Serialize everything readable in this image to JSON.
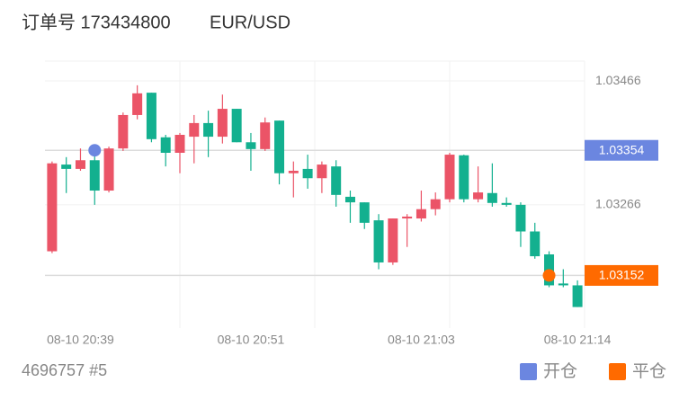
{
  "header": {
    "order_label": "订单号 173434800",
    "symbol": "EUR/USD"
  },
  "chart_data": {
    "type": "candlestick",
    "categories": [
      null,
      null,
      "08-10 20:39",
      null,
      null,
      null,
      null,
      null,
      null,
      null,
      null,
      null,
      null,
      null,
      "08-10 20:51",
      null,
      null,
      null,
      null,
      null,
      null,
      null,
      null,
      null,
      null,
      null,
      "08-10 21:03",
      null,
      null,
      null,
      null,
      null,
      null,
      null,
      null,
      null,
      null,
      "08-10 21:14"
    ],
    "open": [
      1.03191,
      1.03331,
      1.03324,
      1.03338,
      1.03289,
      1.03357,
      1.03411,
      1.03447,
      1.03375,
      1.0335,
      1.03376,
      1.03398,
      1.03376,
      1.03421,
      1.03367,
      1.03356,
      1.03402,
      1.03317,
      1.03324,
      1.03309,
      1.03328,
      1.03279,
      1.0327,
      1.03241,
      1.03173,
      1.03244,
      1.03244,
      1.03259,
      1.03275,
      1.03346,
      1.03275,
      1.03285,
      1.03269,
      1.03266,
      1.03223,
      1.03186,
      1.03139,
      1.03136
    ],
    "high": [
      1.03336,
      1.03343,
      1.03357,
      1.03353,
      1.0336,
      1.03415,
      1.03459,
      1.03447,
      1.03379,
      1.03382,
      1.03411,
      1.03418,
      1.03444,
      1.03421,
      1.03382,
      1.03407,
      1.03402,
      1.03336,
      1.03347,
      1.03336,
      1.03338,
      1.03289,
      1.0327,
      1.03251,
      1.03244,
      1.03251,
      1.03289,
      1.03286,
      1.0335,
      1.03347,
      1.03328,
      1.03333,
      1.03278,
      1.0327,
      1.03237,
      1.03191,
      1.03162,
      1.03144
    ],
    "low": [
      1.03188,
      1.03285,
      1.03321,
      1.03266,
      1.03286,
      1.03353,
      1.03404,
      1.03367,
      1.03328,
      1.03317,
      1.03333,
      1.03343,
      1.03365,
      1.03367,
      1.03321,
      1.03353,
      1.03299,
      1.03278,
      1.03292,
      1.03285,
      1.03263,
      1.03237,
      1.03227,
      1.03162,
      1.03169,
      1.03198,
      1.03239,
      1.03249,
      1.0327,
      1.0327,
      1.0327,
      1.03263,
      1.03263,
      1.03198,
      1.03179,
      1.03133,
      1.03133,
      1.03101
    ],
    "close": [
      1.03333,
      1.03324,
      1.03338,
      1.03289,
      1.03357,
      1.03411,
      1.03446,
      1.03372,
      1.0335,
      1.03379,
      1.03398,
      1.03376,
      1.03421,
      1.03367,
      1.03356,
      1.03399,
      1.03317,
      1.03321,
      1.03309,
      1.03331,
      1.03282,
      1.0327,
      1.03237,
      1.03173,
      1.03244,
      1.03247,
      1.03259,
      1.03275,
      1.03347,
      1.03275,
      1.03286,
      1.03269,
      1.03266,
      1.03223,
      1.03183,
      1.03136,
      1.03136,
      1.03101
    ],
    "up_color": "#eb5467",
    "down_color": "#13b08f",
    "ylim": [
      1.03067,
      1.03498
    ],
    "yticks": [
      1.03266,
      1.03466
    ],
    "grid": true,
    "open_price": {
      "value": 1.03354,
      "color": "#6b86e0"
    },
    "close_price": {
      "value": 1.03152,
      "color": "#ff6a00"
    },
    "legend": [
      {
        "name": "开仓",
        "color": "#6b86e0"
      },
      {
        "name": "平仓",
        "color": "#ff6a00"
      }
    ]
  },
  "footer": {
    "id": "4696757 #5"
  }
}
